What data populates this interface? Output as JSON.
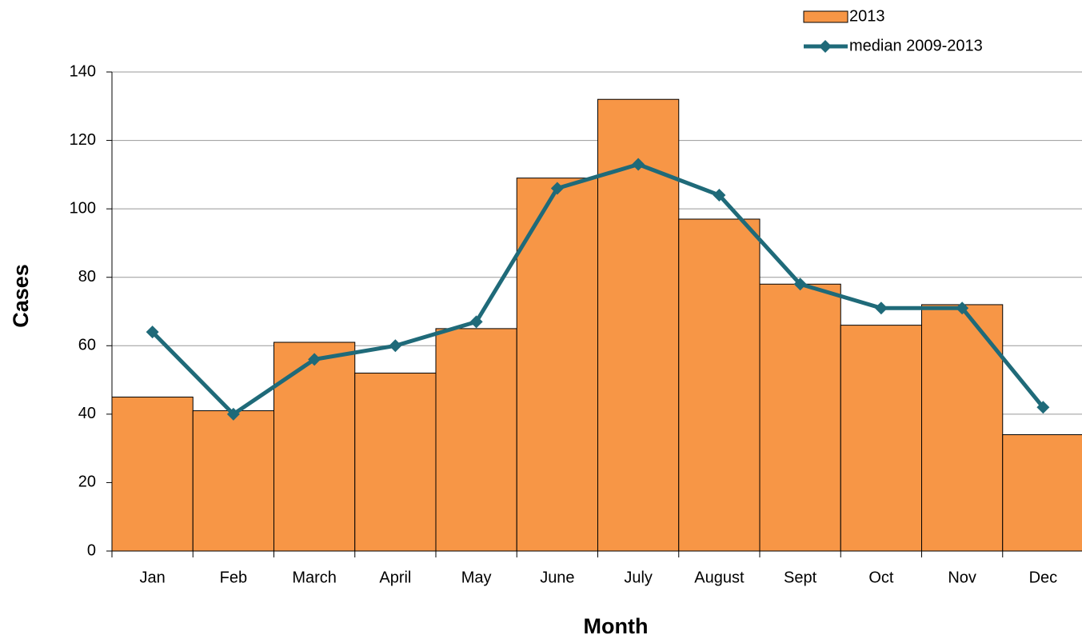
{
  "chart_data": {
    "type": "bar",
    "x_label": "Month",
    "y_label": "Cases",
    "categories": [
      "Jan",
      "Feb",
      "March",
      "April",
      "May",
      "June",
      "July",
      "August",
      "Sept",
      "Oct",
      "Nov",
      "Dec"
    ],
    "series": [
      {
        "name": "2013",
        "type": "bar",
        "color": "#f79646",
        "values": [
          45,
          41,
          61,
          52,
          65,
          109,
          132,
          97,
          78,
          66,
          72,
          34
        ]
      },
      {
        "name": "median 2009-2013",
        "type": "line",
        "color": "#1f6a79",
        "values": [
          64,
          40,
          56,
          60,
          67,
          106,
          113,
          104,
          78,
          71,
          71,
          42
        ]
      }
    ],
    "ylim": [
      0,
      140
    ],
    "yticks": [
      0,
      20,
      40,
      60,
      80,
      100,
      120,
      140
    ],
    "grid": true,
    "legend": "top-right"
  }
}
